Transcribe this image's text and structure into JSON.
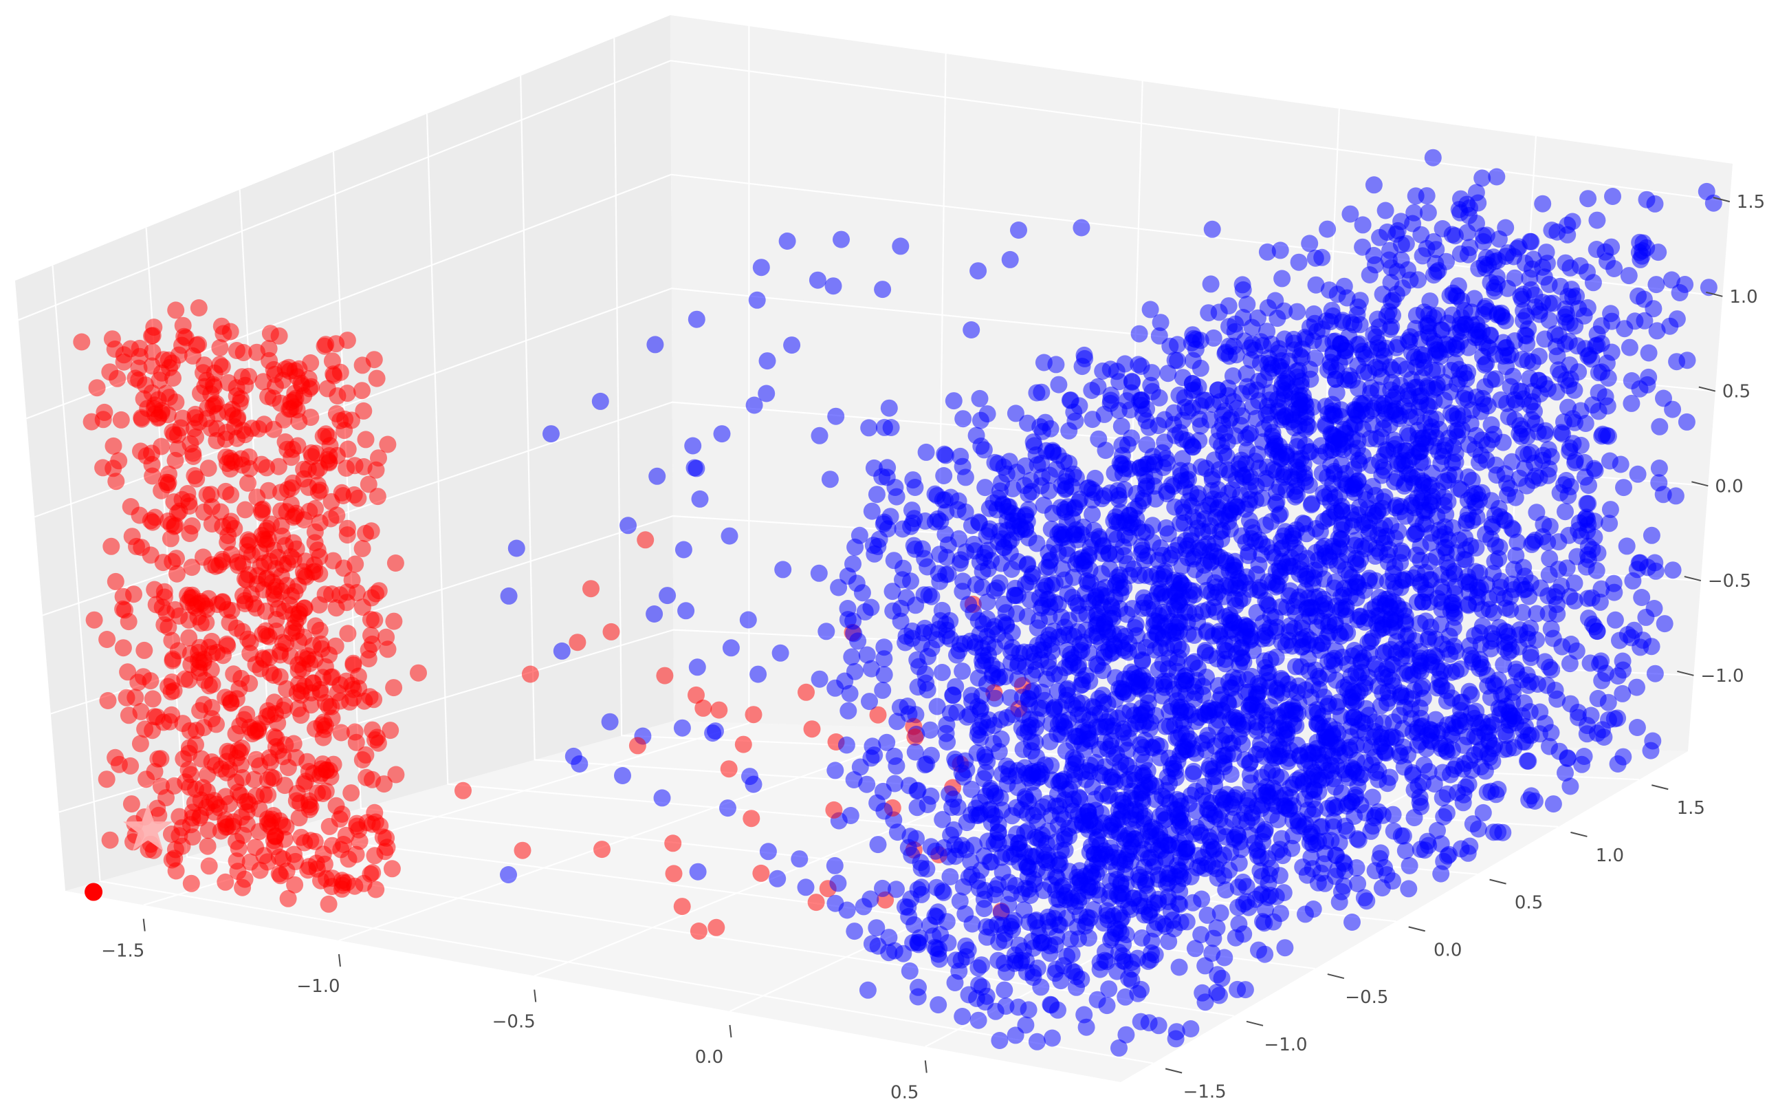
{
  "chart_data": {
    "type": "scatter",
    "projection": "3d",
    "title": "",
    "xlabel": "",
    "ylabel": "",
    "zlabel": "",
    "grid": true,
    "legend": "none",
    "colors": {
      "pane_back": "#f2f2f2",
      "pane_side": "#ececec",
      "pane_floor": "#f5f5f5",
      "grid": "#ffffff",
      "tick_label": "#4d4d4d"
    },
    "axes": {
      "x": {
        "lim": [
          -1.7,
          1.0
        ],
        "ticks": [
          -1.5,
          -1.0,
          -0.5,
          0.0,
          0.5
        ],
        "tick_labels": [
          "−1.5",
          "−1.0",
          "−0.5",
          "0.0",
          "0.5"
        ]
      },
      "y": {
        "lim": [
          -1.7,
          1.8
        ],
        "ticks": [
          -1.5,
          -1.0,
          -0.5,
          0.0,
          0.5,
          1.0,
          1.5
        ],
        "tick_labels": [
          "−1.5",
          "−1.0",
          "−0.5",
          "0.0",
          "0.5",
          "1.0",
          "1.5"
        ]
      },
      "z": {
        "lim": [
          -1.4,
          1.7
        ],
        "ticks": [
          -1.0,
          -0.5,
          0.0,
          0.5,
          1.0,
          1.5
        ],
        "tick_labels": [
          "−1.0",
          "−0.5",
          "0.0",
          "0.5",
          "1.0",
          "1.5"
        ]
      }
    },
    "series": [
      {
        "color": "#ff0000",
        "marker": "circle",
        "alpha": 0.5,
        "clusters": [
          {
            "x": [
              -1.6,
              -1.05
            ],
            "y": [
              -1.65,
              -1.1
            ],
            "z": [
              -1.3,
              1.45
            ],
            "count": 900
          },
          {
            "x": [
              -0.95,
              0.35
            ],
            "y": [
              -1.5,
              -0.6
            ],
            "z": [
              -1.25,
              0.45
            ],
            "count": 45
          }
        ]
      },
      {
        "color": "#0000ff",
        "marker": "circle",
        "alpha": 0.5,
        "clusters": [
          {
            "x": [
              -0.9,
              0.9
            ],
            "y": [
              -1.5,
              1.5
            ],
            "z": [
              -1.3,
              1.45
            ],
            "count": 220
          },
          {
            "x": [
              0.25,
              1.0
            ],
            "y": [
              -1.7,
              1.75
            ],
            "z": [
              -1.35,
              1.6
            ],
            "count": 4200
          }
        ]
      }
    ],
    "highlights": [
      {
        "marker": "star",
        "color": "#ffb0b0",
        "x": -1.52,
        "y": -1.6,
        "z": -1.05
      },
      {
        "marker": "circle",
        "color": "#ff0000",
        "x": -1.65,
        "y": -1.65,
        "z": -1.4
      }
    ]
  }
}
